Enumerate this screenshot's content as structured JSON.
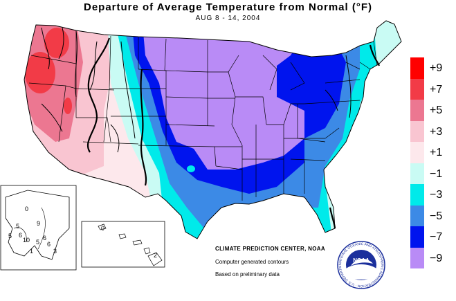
{
  "title": "Departure of Average Temperature from Normal (°F)",
  "subtitle": "AUG 8 - 14, 2004",
  "legend": [
    {
      "label": "+9",
      "color": "#ff0000"
    },
    {
      "label": "+7",
      "color": "#f23b47"
    },
    {
      "label": "+5",
      "color": "#ec7791"
    },
    {
      "label": "+3",
      "color": "#f9c5d1"
    },
    {
      "label": "+1",
      "color": "#fde8ec"
    },
    {
      "label": "−1",
      "color": "#c9fbf4"
    },
    {
      "label": "−3",
      "color": "#00eaea"
    },
    {
      "label": "−5",
      "color": "#3c8ae6"
    },
    {
      "label": "−7",
      "color": "#0014ee"
    },
    {
      "label": "−9",
      "color": "#b98bf6"
    }
  ],
  "credits": {
    "center": "CLIMATE PREDICTION CENTER, NOAA",
    "line2": "Computer generated contours",
    "line3": "Based on preliminary data"
  },
  "logo": {
    "text": "NOAA",
    "ring": "NATIONAL OCEANIC AND ATMOSPHERIC ADMINISTRATION · U.S. DEPARTMENT OF COMMERCE"
  },
  "alaska_labels": [
    "0",
    "5",
    "9",
    "6",
    "5",
    "10",
    "6",
    "5",
    "6",
    "1",
    "3"
  ],
  "hawaii_labels": [
    "0",
    "2"
  ]
}
